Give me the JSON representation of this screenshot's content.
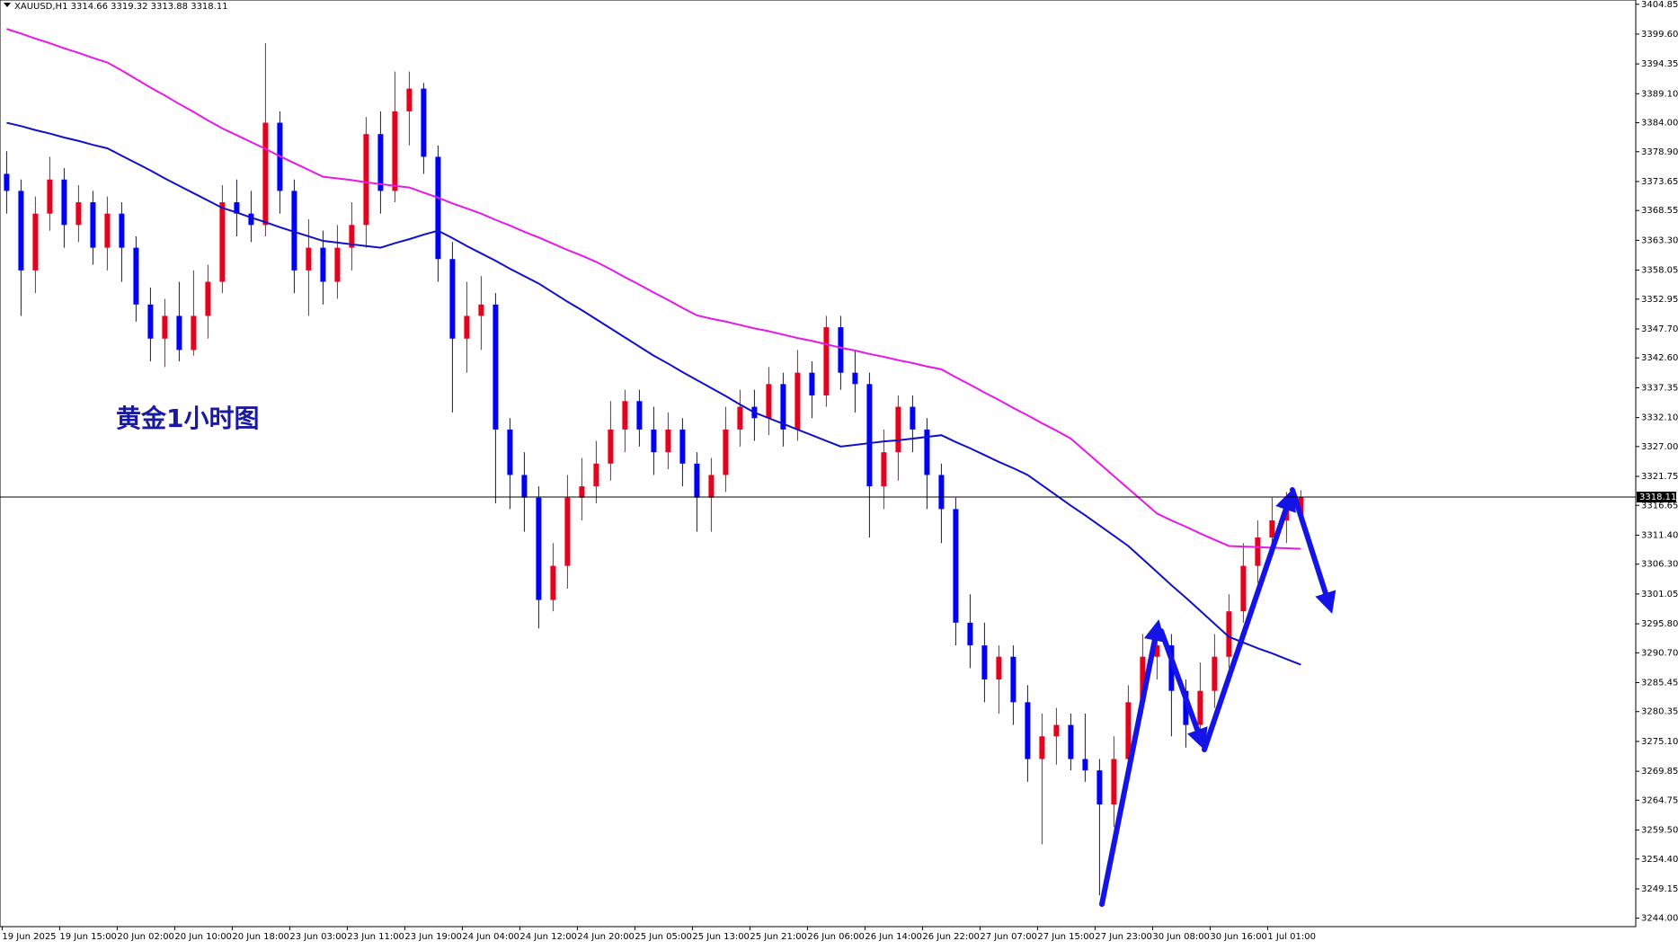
{
  "chart_data": {
    "type": "candlestick",
    "header": "XAUUSD,H1  3314.66 3319.32 3313.88 3318.11",
    "annotation": "黄金1小时图",
    "categories": [
      "19 Jun 2025",
      null,
      null,
      null,
      "19 Jun 15:00",
      null,
      null,
      null,
      "20 Jun 02:00",
      null,
      null,
      null,
      "20 Jun 10:00",
      null,
      null,
      null,
      "20 Jun 18:00",
      null,
      null,
      null,
      "23 Jun 03:00",
      null,
      null,
      null,
      "23 Jun 11:00",
      null,
      null,
      null,
      "23 Jun 19:00",
      null,
      null,
      null,
      "24 Jun 04:00",
      null,
      null,
      null,
      "24 Jun 12:00",
      null,
      null,
      null,
      "24 Jun 20:00",
      null,
      null,
      null,
      "25 Jun 05:00",
      null,
      null,
      null,
      "25 Jun 13:00",
      null,
      null,
      null,
      "25 Jun 21:00",
      null,
      null,
      null,
      "26 Jun 06:00",
      null,
      null,
      null,
      "26 Jun 14:00",
      null,
      null,
      null,
      "26 Jun 22:00",
      null,
      null,
      null,
      "27 Jun 07:00",
      null,
      null,
      null,
      "27 Jun 15:00",
      null,
      null,
      null,
      "27 Jun 23:00",
      null,
      null,
      null,
      "30 Jun 08:00",
      null,
      null,
      null,
      "30 Jun 16:00",
      null,
      null,
      null,
      "1 Jul 01:00",
      null,
      null
    ],
    "open": [
      3375,
      3372,
      3358,
      3368,
      3374,
      3366,
      3370,
      3362,
      3368,
      3362,
      3352,
      3346,
      3350,
      3344,
      3350,
      3356,
      3370,
      3368,
      3366,
      3384,
      3372,
      3358,
      3362,
      3356,
      3362,
      3366,
      3382,
      3372,
      3386,
      3390,
      3378,
      3360,
      3346,
      3350,
      3352,
      3330,
      3322,
      3318,
      3300,
      3306,
      3318,
      3320,
      3324,
      3330,
      3335,
      3330,
      3326,
      3330,
      3324,
      3318,
      3322,
      3330,
      3334,
      3332,
      3338,
      3330,
      3340,
      3336,
      3348,
      3340,
      3338,
      3320,
      3326,
      3334,
      3330,
      3322,
      3316,
      3296,
      3292,
      3286,
      3290,
      3282,
      3272,
      3276,
      3278,
      3272,
      3270,
      3264,
      3272,
      3282,
      3290,
      3292,
      3284,
      3278,
      3284,
      3290,
      3298,
      3306,
      3311,
      3314,
      3314.66
    ],
    "high": [
      3379,
      3374,
      3371,
      3378,
      3376,
      3373,
      3372,
      3371,
      3370,
      3364,
      3355,
      3353,
      3356,
      3358,
      3359,
      3373,
      3374,
      3372,
      3398,
      3386,
      3374,
      3367,
      3365,
      3366,
      3370,
      3385,
      3386,
      3393,
      3393,
      3391,
      3380,
      3363,
      3356,
      3357,
      3354,
      3332,
      3326,
      3320,
      3310,
      3322,
      3325,
      3328,
      3335,
      3337,
      3337,
      3334,
      3333,
      3332,
      3326,
      3325,
      3334,
      3337,
      3337,
      3341,
      3340,
      3344,
      3342,
      3350,
      3350,
      3344,
      3340,
      3330,
      3336,
      3336,
      3332,
      3324,
      3318,
      3301,
      3296,
      3292,
      3292,
      3285,
      3280,
      3281,
      3280,
      3280,
      3272,
      3276,
      3285,
      3294,
      3296,
      3294,
      3286,
      3289,
      3294,
      3301,
      3310,
      3314,
      3318,
      3319,
      3319.32
    ],
    "low": [
      3368,
      3350,
      3354,
      3365,
      3362,
      3363,
      3359,
      3358,
      3356,
      3349,
      3342,
      3341,
      3342,
      3343,
      3346,
      3354,
      3364,
      3363,
      3364,
      3368,
      3354,
      3350,
      3352,
      3353,
      3358,
      3362,
      3368,
      3370,
      3380,
      3375,
      3356,
      3333,
      3340,
      3344,
      3317,
      3316,
      3312,
      3295,
      3298,
      3302,
      3314,
      3317,
      3321,
      3326,
      3327,
      3322,
      3323,
      3320,
      3312,
      3312,
      3319,
      3327,
      3328,
      3329,
      3327,
      3328,
      3332,
      3334,
      3337,
      3333,
      3311,
      3316,
      3321,
      3326,
      3316,
      3310,
      3292,
      3288,
      3282,
      3280,
      3278,
      3268,
      3257,
      3271,
      3270,
      3268,
      3248,
      3260,
      3270,
      3280,
      3286,
      3276,
      3274,
      3276,
      3281,
      3288,
      3296,
      3303,
      3308,
      3310,
      3313.88
    ],
    "close": [
      3372,
      3358,
      3368,
      3374,
      3366,
      3370,
      3362,
      3368,
      3362,
      3352,
      3346,
      3350,
      3344,
      3350,
      3356,
      3370,
      3368,
      3366,
      3384,
      3372,
      3358,
      3362,
      3356,
      3362,
      3366,
      3382,
      3372,
      3386,
      3390,
      3378,
      3360,
      3346,
      3350,
      3352,
      3330,
      3322,
      3318,
      3300,
      3306,
      3318,
      3320,
      3324,
      3330,
      3335,
      3330,
      3326,
      3330,
      3324,
      3318,
      3322,
      3330,
      3334,
      3332,
      3338,
      3330,
      3340,
      3336,
      3348,
      3340,
      3338,
      3320,
      3326,
      3334,
      3330,
      3322,
      3316,
      3296,
      3292,
      3286,
      3290,
      3282,
      3272,
      3276,
      3278,
      3272,
      3270,
      3264,
      3272,
      3282,
      3290,
      3292,
      3284,
      3278,
      3284,
      3290,
      3298,
      3306,
      3311,
      3314,
      3316,
      3318.11
    ],
    "up_color": "#e8001c",
    "down_color": "#0000ff",
    "lines": [
      {
        "color": "#1010c8",
        "values": [
          3384,
          3383.4,
          3382.7,
          3382.1,
          3381.4,
          3380.8,
          3380.1,
          3379.5,
          3378.2,
          3376.9,
          3375.6,
          3374.2,
          3372.9,
          3371.6,
          3370.3,
          3369,
          3368.2,
          3367.3,
          3366.5,
          3365.6,
          3364.8,
          3364,
          3363.2,
          3362.9,
          3362.6,
          3362.3,
          3362,
          3362.8,
          3363.5,
          3364.3,
          3365,
          3363.7,
          3362.3,
          3361,
          3359.7,
          3358.3,
          3357,
          3355.7,
          3354.1,
          3352.5,
          3351,
          3349.4,
          3347.8,
          3346.2,
          3344.6,
          3343,
          3341.6,
          3340.1,
          3338.7,
          3337.3,
          3335.9,
          3334.4,
          3333,
          3332,
          3331,
          3330,
          3329,
          3328,
          3327,
          3327.3,
          3327.6,
          3327.9,
          3328.1,
          3328.4,
          3328.7,
          3329,
          3327.8,
          3326.7,
          3325.5,
          3324.3,
          3323.2,
          3322,
          3320.2,
          3318.4,
          3316.6,
          3314.9,
          3313.1,
          3311.3,
          3309.5,
          3307.2,
          3304.9,
          3302.6,
          3300.4,
          3298.1,
          3295.8,
          3293.5,
          3292.5,
          3291.5,
          3290.6,
          3289.6,
          3288.6
        ]
      },
      {
        "color": "#e619e6",
        "values": [
          3400.5,
          3399.7,
          3398.8,
          3398,
          3397.1,
          3396.3,
          3395.4,
          3394.6,
          3393.2,
          3391.7,
          3390.2,
          3388.8,
          3387.3,
          3385.9,
          3384.4,
          3383,
          3381.8,
          3380.6,
          3379.4,
          3378.1,
          3376.9,
          3375.7,
          3374.5,
          3374.2,
          3373.9,
          3373.5,
          3373.2,
          3372.9,
          3372.6,
          3371.7,
          3370.8,
          3369.8,
          3368.9,
          3368,
          3366.9,
          3365.9,
          3364.8,
          3363.8,
          3362.7,
          3361.6,
          3360.6,
          3359.5,
          3358.2,
          3356.8,
          3355.5,
          3354.1,
          3352.8,
          3351.4,
          3350.1,
          3349.5,
          3349,
          3348.4,
          3347.8,
          3347.3,
          3346.7,
          3346.1,
          3345.6,
          3345,
          3344.4,
          3343.9,
          3343.3,
          3342.8,
          3342.2,
          3341.7,
          3341.1,
          3340.6,
          3339.2,
          3337.9,
          3336.5,
          3335.2,
          3333.8,
          3332.5,
          3331.1,
          3329.8,
          3328.4,
          3326.2,
          3324,
          3321.8,
          3319.6,
          3317.4,
          3315.2,
          3314,
          3312.9,
          3311.7,
          3310.6,
          3309.5,
          3309.4,
          3309.3,
          3309.2,
          3309.1,
          3309
        ]
      }
    ],
    "last_price": 3318.11,
    "ylim": [
      3242.5,
      3405.6
    ],
    "yticks": [
      3404.85,
      {
        "value": 3399.6,
        "label": "3399.60"
      },
      3394.35,
      {
        "value": 3389.1,
        "label": "3389.10"
      },
      {
        "value": 3384,
        "label": "3384.00"
      },
      {
        "value": 3378.9,
        "label": "3378.90"
      },
      3373.65,
      3368.55,
      {
        "value": 3363.3,
        "label": "3363.30"
      },
      3358.05,
      3352.95,
      {
        "value": 3347.7,
        "label": "3347.70"
      },
      {
        "value": 3342.6,
        "label": "3342.60"
      },
      3337.35,
      {
        "value": 3332.1,
        "label": "3332.10"
      },
      {
        "value": 3327,
        "label": "3327.00"
      },
      3321.75,
      3316.65,
      {
        "value": 3311.4,
        "label": "3311.40"
      },
      {
        "value": 3306.3,
        "label": "3306.30"
      },
      3301.05,
      {
        "value": 3295.8,
        "label": "3295.80"
      },
      {
        "value": 3290.7,
        "label": "3290.70"
      },
      3285.45,
      3280.35,
      {
        "value": 3275.1,
        "label": "3275.10"
      },
      3269.85,
      3264.75,
      {
        "value": 3259.5,
        "label": "3259.50"
      },
      {
        "value": 3254.4,
        "label": "3254.40"
      },
      3249.15,
      {
        "value": 3244,
        "label": "3244.00"
      }
    ],
    "grid": false
  }
}
